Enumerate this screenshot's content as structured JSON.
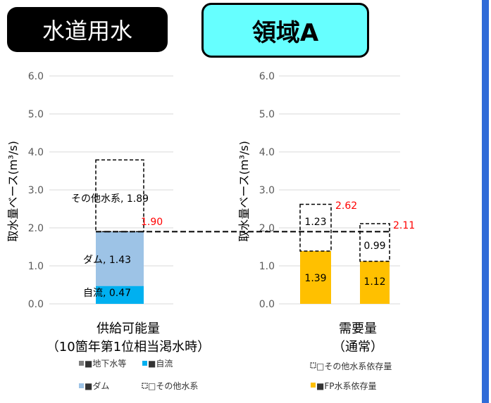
{
  "badges": {
    "left": "水道用水",
    "right": "領域A"
  },
  "colors": {
    "dam": "#9dc3e6",
    "natural": "#00b0f0",
    "fp": "#ffc000",
    "red": "#ff0000",
    "accent_bar": "#2f6bd8"
  },
  "chart_data": [
    {
      "type": "bar",
      "stacked": true,
      "ylabel": "取水量ベース(m³/s)",
      "ylim": [
        0.0,
        6.0
      ],
      "yticks": [
        "0.0",
        "1.0",
        "2.0",
        "3.0",
        "4.0",
        "5.0",
        "6.0"
      ],
      "caption": [
        "供給可能量",
        "（10箇年第1位相当渇水時）"
      ],
      "series": [
        {
          "name": "地下水等",
          "values": [
            0
          ]
        },
        {
          "name": "自流",
          "values": [
            0.47
          ],
          "label": "自流, 0.47"
        },
        {
          "name": "ダム",
          "values": [
            1.43
          ],
          "label": "ダム, 1.43"
        },
        {
          "name": "その他水系",
          "values": [
            1.89
          ],
          "label": "その他水系, 1.89",
          "style": "dashed"
        }
      ],
      "annotations": [
        {
          "text": "1.90",
          "y": 1.9,
          "color": "red"
        }
      ],
      "legend": [
        {
          "key": "groundwater",
          "text": "■地下水等"
        },
        {
          "key": "natural",
          "text": "■自流"
        },
        {
          "key": "dam",
          "text": "■ダム"
        },
        {
          "key": "other",
          "text": "□その他水系"
        }
      ]
    },
    {
      "type": "bar",
      "stacked": true,
      "ylabel": "取水量ベース(m³/s)",
      "ylim": [
        0.0,
        6.0
      ],
      "yticks": [
        "0.0",
        "1.0",
        "2.0",
        "3.0",
        "4.0",
        "5.0",
        "6.0"
      ],
      "caption": [
        "需要量",
        "（通常）"
      ],
      "series": [
        {
          "name": "FP水系依存量",
          "values": [
            1.39,
            1.12
          ],
          "labels": [
            "1.39",
            "1.12"
          ]
        },
        {
          "name": "その他水系依存量",
          "values": [
            1.23,
            0.99
          ],
          "labels": [
            "1.23",
            "0.99"
          ],
          "style": "dashed"
        }
      ],
      "totals": [
        {
          "text": "2.62",
          "value": 2.62
        },
        {
          "text": "2.11",
          "value": 2.11
        }
      ],
      "legend": [
        {
          "key": "other",
          "text": "□その他水系依存量"
        },
        {
          "key": "fp",
          "text": "■FP水系依存量"
        }
      ]
    }
  ],
  "reference_line": {
    "value": 1.9
  }
}
